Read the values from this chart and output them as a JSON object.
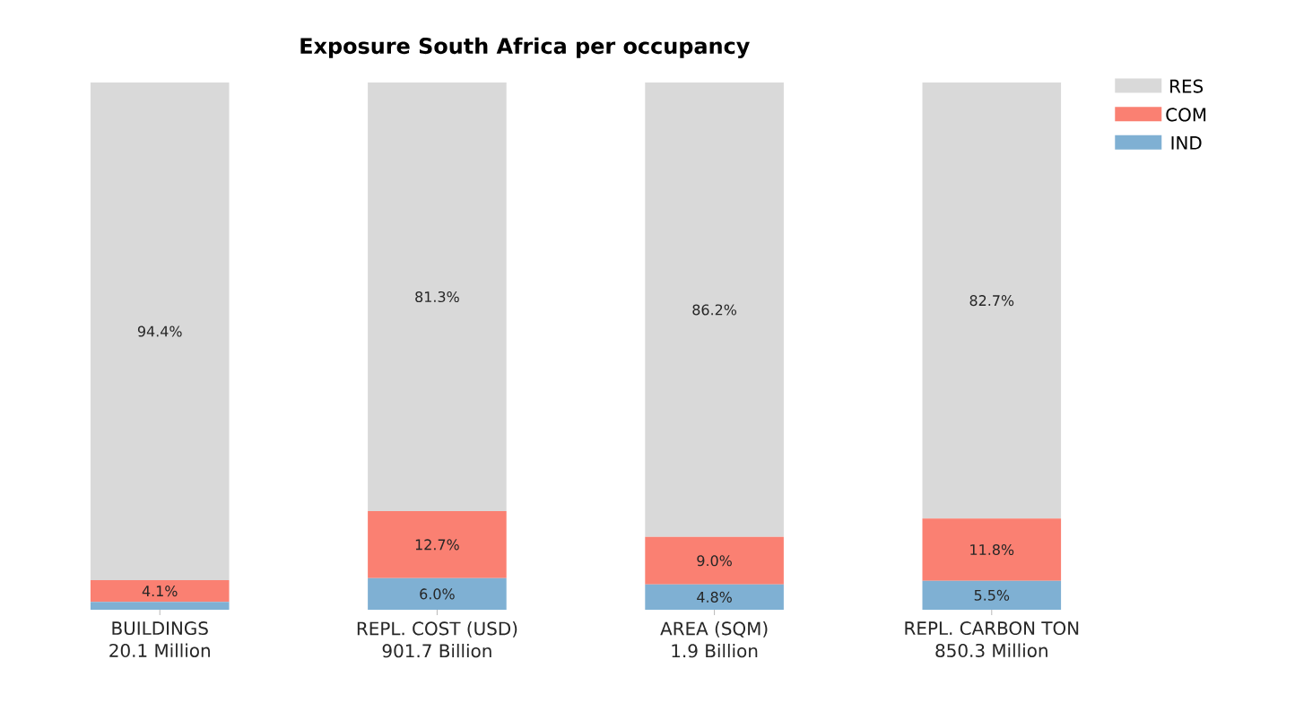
{
  "chart_data": {
    "type": "bar",
    "title": "Exposure South Africa per occupancy",
    "categories": [
      "BUILDINGS\n20.1 Million",
      "REPL. COST (USD)\n901.7 Billion",
      "AREA (SQM)\n1.9 Billion",
      "REPL. CARBON TON\n850.3 Million"
    ],
    "stacked": true,
    "tick_labels": "x",
    "legend": "top right",
    "series": [
      {
        "name": "IND",
        "color": "#7fb0d3",
        "values": [
          1.5,
          6.0,
          4.8,
          5.5
        ],
        "value_labels": [
          null,
          "6.0%",
          "4.8%",
          "5.5%"
        ]
      },
      {
        "name": "COM",
        "color": "#fa8072",
        "values": [
          4.1,
          12.7,
          9.0,
          11.8
        ],
        "value_labels": [
          "4.1%",
          "12.7%",
          "9.0%",
          "11.8%"
        ]
      },
      {
        "name": "RES",
        "color": "#d9d9d9",
        "values": [
          94.4,
          81.3,
          86.2,
          82.7
        ],
        "value_labels": [
          "94.4%",
          "81.3%",
          "86.2%",
          "82.7%"
        ]
      }
    ]
  }
}
